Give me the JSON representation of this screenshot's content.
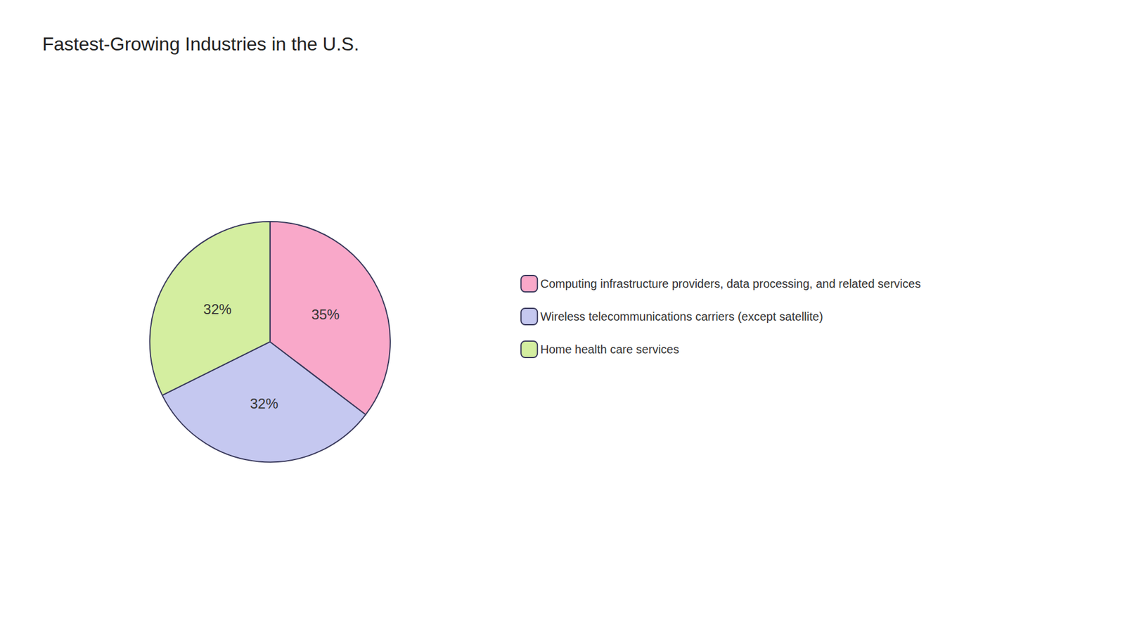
{
  "chart_data": {
    "type": "pie",
    "title": "Fastest-Growing Industries in the U.S.",
    "categories": [
      "Computing infrastructure providers, data processing, and related services",
      "Wireless telecommunications carriers (except satellite)",
      "Home health care services"
    ],
    "values": [
      35,
      32,
      32
    ],
    "value_labels": [
      "35%",
      "32%",
      "32%"
    ],
    "colors": [
      "#f9a8c9",
      "#c5c8f0",
      "#d4eea0"
    ],
    "data_labels": true,
    "legend": "right"
  }
}
